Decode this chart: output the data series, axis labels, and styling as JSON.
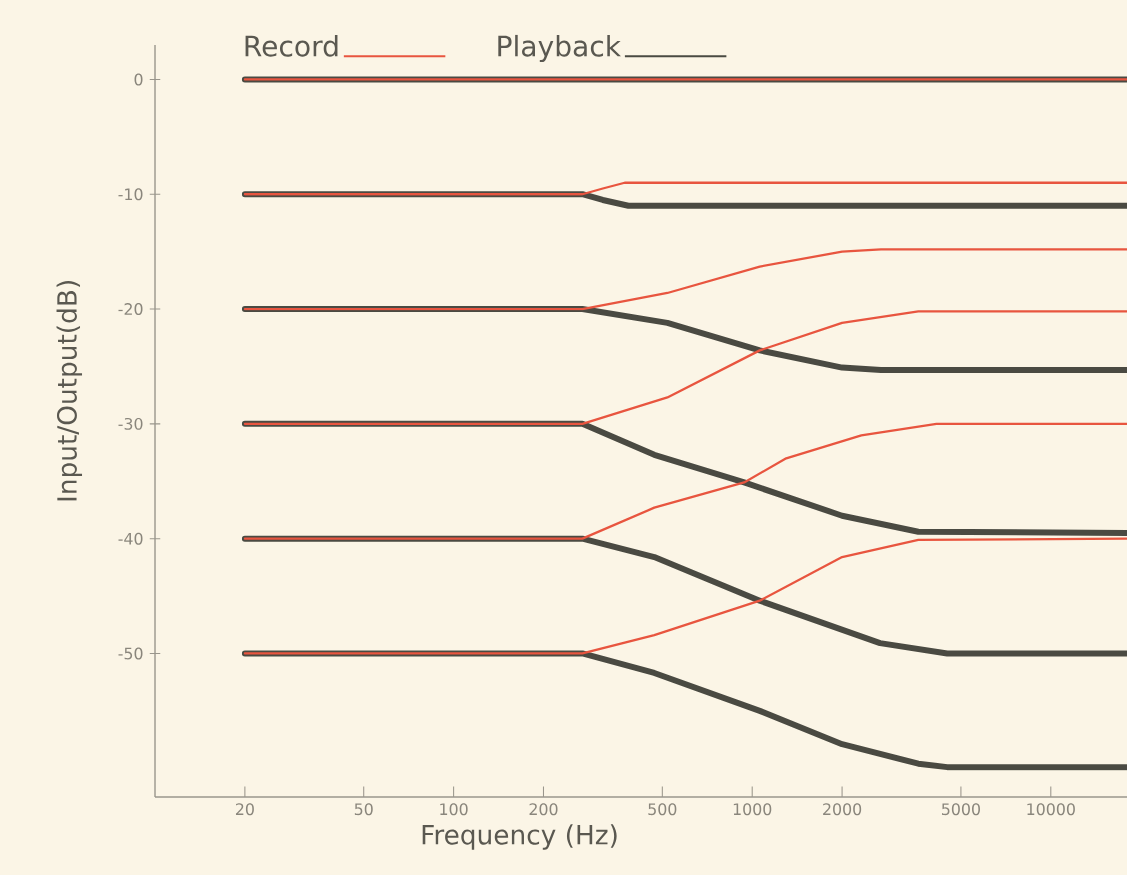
{
  "chart_data": {
    "type": "line",
    "xlabel": "Frequency (Hz)",
    "ylabel": "Input/Output(dB)",
    "log": "x",
    "xlim": [
      10,
      18000
    ],
    "ylim": [
      -62.5,
      3
    ],
    "xticks": [
      20,
      50,
      100,
      200,
      500,
      1000,
      2000,
      5000,
      10000
    ],
    "yticks": [
      0,
      -10,
      -20,
      -30,
      -40,
      -50
    ],
    "grid": false,
    "legend": "top left",
    "marker": "none",
    "line_style": "solid",
    "series": [
      {
        "name": "Playback",
        "color": "#4a4a42",
        "x": [
          20,
          18000
        ],
        "values": [
          0,
          0
        ]
      },
      {
        "color": "#4a4a42",
        "x": [
          20,
          270,
          316,
          385,
          18000
        ],
        "values": [
          -10,
          -10,
          -10.5,
          -11,
          -11
        ]
      },
      {
        "color": "#4a4a42",
        "x": [
          20,
          270,
          520,
          1060,
          2000,
          2700,
          18000
        ],
        "values": [
          -20,
          -20,
          -21.2,
          -23.6,
          -25.1,
          -25.3,
          -25.3
        ]
      },
      {
        "color": "#4a4a42",
        "x": [
          20,
          270,
          470,
          940,
          2000,
          3600,
          18000
        ],
        "values": [
          -30,
          -30,
          -32.7,
          -35.1,
          -38,
          -39.4,
          -39.5
        ]
      },
      {
        "color": "#4a4a42",
        "x": [
          20,
          270,
          470,
          1060,
          2680,
          4500,
          18000
        ],
        "values": [
          -40,
          -40,
          -41.6,
          -45.4,
          -49.1,
          -50,
          -50
        ]
      },
      {
        "color": "#4a4a42",
        "x": [
          20,
          270,
          470,
          1060,
          2000,
          3600,
          4500,
          18000
        ],
        "values": [
          -50,
          -50,
          -51.7,
          -55,
          -57.9,
          -59.6,
          -59.9,
          -59.9
        ]
      },
      {
        "name": "Record",
        "color": "#e8553f",
        "x": [
          20,
          18000
        ],
        "values": [
          0,
          0
        ]
      },
      {
        "color": "#e8553f",
        "x": [
          20,
          270,
          316,
          374,
          18000
        ],
        "values": [
          -10,
          -10,
          -9.5,
          -9,
          -9
        ]
      },
      {
        "color": "#e8553f",
        "x": [
          20,
          270,
          520,
          1060,
          2000,
          2700,
          18000
        ],
        "values": [
          -20,
          -20,
          -18.6,
          -16.3,
          -15,
          -14.8,
          -14.8
        ]
      },
      {
        "color": "#e8553f",
        "x": [
          20,
          270,
          520,
          1060,
          2000,
          3600,
          18000
        ],
        "values": [
          -30,
          -30,
          -27.7,
          -23.6,
          -21.2,
          -20.2,
          -20.2
        ]
      },
      {
        "color": "#e8553f",
        "x": [
          20,
          270,
          470,
          940,
          1300,
          2320,
          4140,
          18000
        ],
        "values": [
          -40,
          -40,
          -37.3,
          -35.1,
          -33,
          -31,
          -30,
          -30
        ]
      },
      {
        "color": "#e8553f",
        "x": [
          20,
          270,
          470,
          1060,
          2000,
          3600,
          18000
        ],
        "values": [
          -50,
          -50,
          -48.4,
          -45.4,
          -41.6,
          -40.1,
          -40
        ]
      }
    ]
  }
}
